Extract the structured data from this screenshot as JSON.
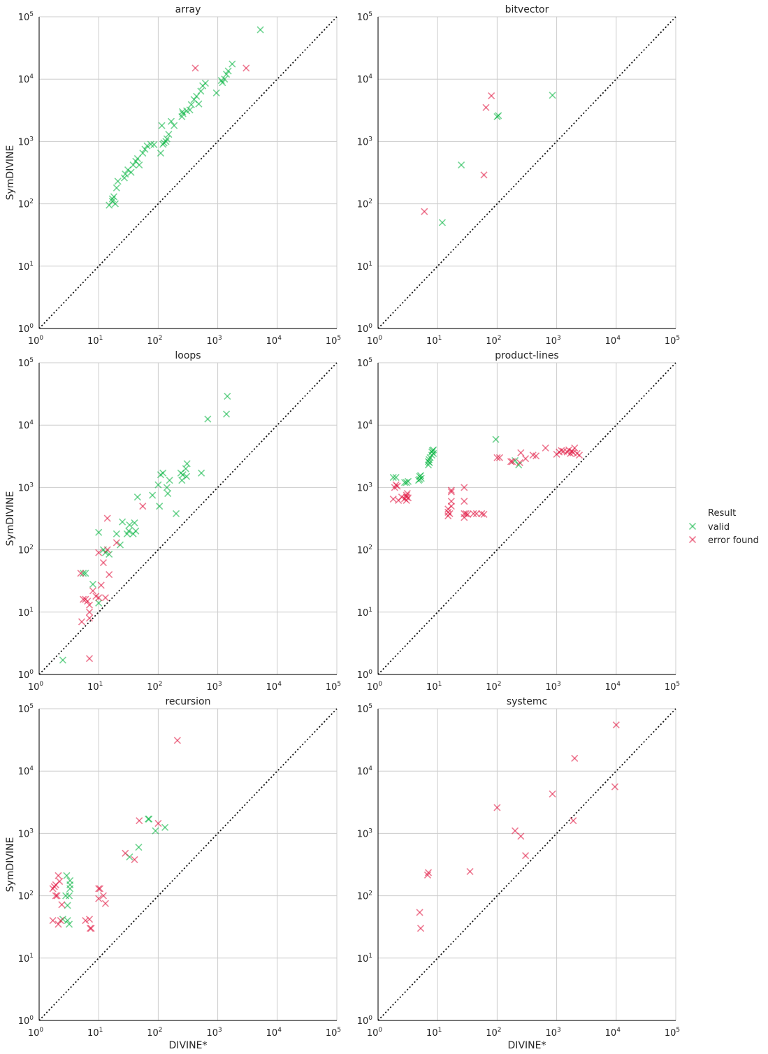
{
  "colors": {
    "valid": "#00b33c",
    "error found": "#e0103c",
    "grid": "#cccccc",
    "diagonal": "#111111"
  },
  "legend": {
    "title": "Result",
    "items": [
      "valid",
      "error found"
    ]
  },
  "chart_data": [
    {
      "type": "scatter",
      "title": "array",
      "xlabel": "",
      "ylabel": "SymDIVINE",
      "xlim": [
        1,
        100000
      ],
      "ylim": [
        1,
        100000
      ],
      "xscale": "log",
      "yscale": "log",
      "grid": true,
      "reference_line": "y = x",
      "series": [
        {
          "name": "valid",
          "points": [
            [
              15,
              95
            ],
            [
              17,
              110
            ],
            [
              17,
              120
            ],
            [
              18,
              130
            ],
            [
              19,
              100
            ],
            [
              20,
              180
            ],
            [
              21,
              230
            ],
            [
              27,
              260
            ],
            [
              28,
              300
            ],
            [
              31,
              350
            ],
            [
              35,
              320
            ],
            [
              38,
              420
            ],
            [
              42,
              480
            ],
            [
              45,
              530
            ],
            [
              48,
              420
            ],
            [
              55,
              650
            ],
            [
              60,
              750
            ],
            [
              65,
              850
            ],
            [
              75,
              900
            ],
            [
              85,
              890
            ],
            [
              110,
              650
            ],
            [
              115,
              1800
            ],
            [
              120,
              900
            ],
            [
              125,
              950
            ],
            [
              135,
              1000
            ],
            [
              140,
              1100
            ],
            [
              150,
              1300
            ],
            [
              165,
              2100
            ],
            [
              185,
              1800
            ],
            [
              250,
              2500
            ],
            [
              255,
              3000
            ],
            [
              260,
              2800
            ],
            [
              300,
              3100
            ],
            [
              340,
              3200
            ],
            [
              360,
              3900
            ],
            [
              400,
              4700
            ],
            [
              440,
              5300
            ],
            [
              480,
              4000
            ],
            [
              520,
              6400
            ],
            [
              560,
              7800
            ],
            [
              620,
              8600
            ],
            [
              950,
              6000
            ],
            [
              1150,
              9500
            ],
            [
              1200,
              8800
            ],
            [
              1300,
              10000
            ],
            [
              1400,
              12000
            ],
            [
              1500,
              13500
            ],
            [
              1750,
              17500
            ],
            [
              5200,
              62000
            ]
          ]
        },
        {
          "name": "error found",
          "points": [
            [
              420,
              15000
            ],
            [
              3000,
              15000
            ]
          ]
        }
      ]
    },
    {
      "type": "scatter",
      "title": "bitvector",
      "xlabel": "",
      "ylabel": "",
      "xlim": [
        1,
        100000
      ],
      "ylim": [
        1,
        100000
      ],
      "xscale": "log",
      "yscale": "log",
      "grid": true,
      "reference_line": "y = x",
      "series": [
        {
          "name": "valid",
          "points": [
            [
              12,
              50
            ],
            [
              25,
              420
            ],
            [
              100,
              2500
            ],
            [
              105,
              2600
            ],
            [
              850,
              5500
            ]
          ]
        },
        {
          "name": "error found",
          "points": [
            [
              6,
              75
            ],
            [
              60,
              290
            ],
            [
              65,
              3500
            ],
            [
              80,
              5400
            ]
          ]
        }
      ]
    },
    {
      "type": "scatter",
      "title": "loops",
      "xlabel": "",
      "ylabel": "SymDIVINE",
      "xlim": [
        1,
        100000
      ],
      "ylim": [
        1,
        100000
      ],
      "xscale": "log",
      "yscale": "log",
      "grid": true,
      "reference_line": "y = x",
      "series": [
        {
          "name": "valid",
          "points": [
            [
              2.5,
              1.7
            ],
            [
              5.5,
              42
            ],
            [
              6,
              42
            ],
            [
              8,
              28
            ],
            [
              10,
              14
            ],
            [
              10,
              190
            ],
            [
              12,
              100
            ],
            [
              13,
              90
            ],
            [
              15,
              85
            ],
            [
              20,
              180
            ],
            [
              23,
              120
            ],
            [
              25,
              280
            ],
            [
              30,
              180
            ],
            [
              32,
              200
            ],
            [
              33,
              250
            ],
            [
              38,
              180
            ],
            [
              40,
              270
            ],
            [
              42,
              200
            ],
            [
              45,
              700
            ],
            [
              80,
              750
            ],
            [
              100,
              1100
            ],
            [
              105,
              500
            ],
            [
              110,
              1600
            ],
            [
              120,
              1700
            ],
            [
              140,
              1000
            ],
            [
              145,
              800
            ],
            [
              155,
              1300
            ],
            [
              200,
              380
            ],
            [
              240,
              1700
            ],
            [
              250,
              1300
            ],
            [
              260,
              1600
            ],
            [
              290,
              2000
            ],
            [
              300,
              1500
            ],
            [
              305,
              2400
            ],
            [
              530,
              1700
            ],
            [
              680,
              12500
            ],
            [
              1400,
              15000
            ],
            [
              1450,
              29000
            ]
          ]
        },
        {
          "name": "error found",
          "points": [
            [
              5,
              42
            ],
            [
              5.2,
              7
            ],
            [
              5.5,
              16
            ],
            [
              6,
              16
            ],
            [
              6.5,
              15
            ],
            [
              7,
              13
            ],
            [
              7,
              10
            ],
            [
              7,
              8
            ],
            [
              7,
              1.8
            ],
            [
              8,
              22
            ],
            [
              9,
              18
            ],
            [
              10,
              17
            ],
            [
              10,
              90
            ],
            [
              11,
              27
            ],
            [
              12,
              62
            ],
            [
              13,
              17
            ],
            [
              14,
              100
            ],
            [
              14,
              320
            ],
            [
              15,
              40
            ],
            [
              20,
              130
            ],
            [
              55,
              500
            ]
          ]
        }
      ]
    },
    {
      "type": "scatter",
      "title": "product-lines",
      "xlabel": "",
      "ylabel": "",
      "xlim": [
        1,
        100000
      ],
      "ylim": [
        1,
        100000
      ],
      "xscale": "log",
      "yscale": "log",
      "grid": true,
      "reference_line": "y = x",
      "series": [
        {
          "name": "valid",
          "points": [
            [
              1.8,
              1450
            ],
            [
              2,
              1450
            ],
            [
              2.8,
              1200
            ],
            [
              3,
              1200
            ],
            [
              3.2,
              1250
            ],
            [
              4.8,
              1300
            ],
            [
              5,
              1350
            ],
            [
              5,
              1500
            ],
            [
              5.2,
              1550
            ],
            [
              5.3,
              1400
            ],
            [
              7,
              2300
            ],
            [
              7,
              2600
            ],
            [
              7.2,
              2800
            ],
            [
              7.3,
              2500
            ],
            [
              7.5,
              3000
            ],
            [
              8,
              3300
            ],
            [
              8,
              3700
            ],
            [
              8.2,
              3900
            ],
            [
              8.5,
              4000
            ],
            [
              8.5,
              3500
            ],
            [
              95,
              5900
            ],
            [
              200,
              2700
            ],
            [
              230,
              2300
            ]
          ]
        },
        {
          "name": "error found",
          "points": [
            [
              1.8,
              650
            ],
            [
              1.9,
              1000
            ],
            [
              2,
              1100
            ],
            [
              2.1,
              1050
            ],
            [
              2.2,
              620
            ],
            [
              2.5,
              700
            ],
            [
              2.8,
              660
            ],
            [
              3,
              700
            ],
            [
              3,
              750
            ],
            [
              3,
              620
            ],
            [
              3.1,
              800
            ],
            [
              3.2,
              680
            ],
            [
              15,
              350
            ],
            [
              15,
              400
            ],
            [
              15,
              450
            ],
            [
              16,
              380
            ],
            [
              17,
              500
            ],
            [
              17,
              600
            ],
            [
              17,
              850
            ],
            [
              17,
              900
            ],
            [
              28,
              330
            ],
            [
              28,
              380
            ],
            [
              28,
              600
            ],
            [
              28,
              1000
            ],
            [
              30,
              380
            ],
            [
              32,
              370
            ],
            [
              40,
              380
            ],
            [
              45,
              380
            ],
            [
              55,
              380
            ],
            [
              60,
              370
            ],
            [
              100,
              3000
            ],
            [
              110,
              3000
            ],
            [
              170,
              2600
            ],
            [
              180,
              2600
            ],
            [
              240,
              2500
            ],
            [
              250,
              3600
            ],
            [
              300,
              2900
            ],
            [
              400,
              3300
            ],
            [
              450,
              3200
            ],
            [
              650,
              4300
            ],
            [
              1000,
              3400
            ],
            [
              1100,
              3700
            ],
            [
              1200,
              3900
            ],
            [
              1300,
              3800
            ],
            [
              1500,
              3700
            ],
            [
              1600,
              4000
            ],
            [
              1700,
              3500
            ],
            [
              1800,
              3800
            ],
            [
              1900,
              3600
            ],
            [
              2000,
              4300
            ],
            [
              2200,
              3500
            ],
            [
              2400,
              3300
            ]
          ]
        }
      ]
    },
    {
      "type": "scatter",
      "title": "recursion",
      "xlabel": "DIVINE*",
      "ylabel": "SymDIVINE",
      "xlim": [
        1,
        100000
      ],
      "ylim": [
        1,
        100000
      ],
      "xscale": "log",
      "yscale": "log",
      "grid": true,
      "reference_line": "y = x",
      "series": [
        {
          "name": "valid",
          "points": [
            [
              2.5,
              42
            ],
            [
              2.8,
              100
            ],
            [
              2.9,
              210
            ],
            [
              3,
              40
            ],
            [
              3,
              70
            ],
            [
              3.2,
              100
            ],
            [
              3.2,
              35
            ],
            [
              3.3,
              130
            ],
            [
              3.3,
              150
            ],
            [
              3.3,
              175
            ],
            [
              33,
              420
            ],
            [
              47,
              600
            ],
            [
              68,
              1700
            ],
            [
              70,
              1700
            ],
            [
              90,
              1100
            ],
            [
              130,
              1250
            ]
          ]
        },
        {
          "name": "error found",
          "points": [
            [
              1.7,
              40
            ],
            [
              1.7,
              130
            ],
            [
              1.8,
              140
            ],
            [
              1.9,
              100
            ],
            [
              1.9,
              150
            ],
            [
              2,
              100
            ],
            [
              2.1,
              35
            ],
            [
              2.1,
              210
            ],
            [
              2.2,
              170
            ],
            [
              2.3,
              40
            ],
            [
              2.4,
              72
            ],
            [
              6,
              40
            ],
            [
              7,
              42
            ],
            [
              7.2,
              30
            ],
            [
              7.5,
              30
            ],
            [
              10,
              90
            ],
            [
              10,
              130
            ],
            [
              10.5,
              130
            ],
            [
              12,
              100
            ],
            [
              13,
              75
            ],
            [
              28,
              480
            ],
            [
              40,
              380
            ],
            [
              48,
              1600
            ],
            [
              100,
              1450
            ],
            [
              210,
              31000
            ]
          ]
        }
      ]
    },
    {
      "type": "scatter",
      "title": "systemc",
      "xlabel": "DIVINE*",
      "ylabel": "",
      "xlim": [
        1,
        100000
      ],
      "ylim": [
        1,
        100000
      ],
      "xscale": "log",
      "yscale": "log",
      "grid": true,
      "reference_line": "y = x",
      "series": [
        {
          "name": "valid",
          "points": []
        },
        {
          "name": "error found",
          "points": [
            [
              5,
              54
            ],
            [
              5.2,
              30
            ],
            [
              6.8,
              215
            ],
            [
              7,
              235
            ],
            [
              35,
              245
            ],
            [
              100,
              2600
            ],
            [
              200,
              1100
            ],
            [
              250,
              900
            ],
            [
              300,
              440
            ],
            [
              850,
              4300
            ],
            [
              1900,
              1600
            ],
            [
              2000,
              16000
            ],
            [
              9500,
              5600
            ],
            [
              10000,
              55000
            ]
          ]
        }
      ]
    }
  ]
}
